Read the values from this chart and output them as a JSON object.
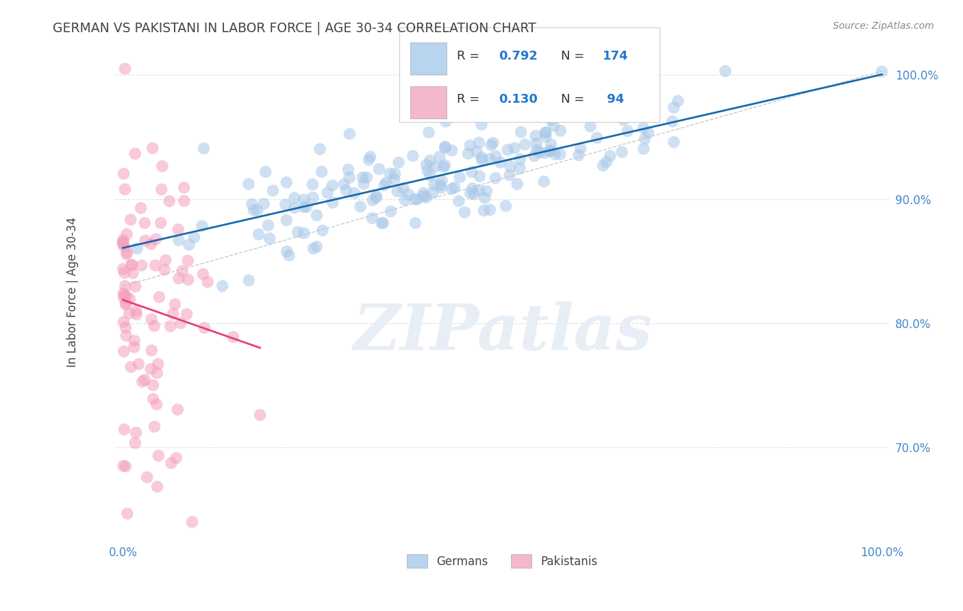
{
  "title": "GERMAN VS PAKISTANI IN LABOR FORCE | AGE 30-34 CORRELATION CHART",
  "source": "Source: ZipAtlas.com",
  "ylabel": "In Labor Force | Age 30-34",
  "xlim": [
    -0.01,
    1.01
  ],
  "ylim": [
    0.625,
    1.025
  ],
  "yticks": [
    0.7,
    0.8,
    0.9,
    1.0
  ],
  "ytick_labels": [
    "70.0%",
    "80.0%",
    "90.0%",
    "100.0%"
  ],
  "xticks": [
    0.0,
    0.5,
    1.0
  ],
  "xtick_labels": [
    "0.0%",
    "",
    "100.0%"
  ],
  "legend_R_blue": "0.792",
  "legend_N_blue": "174",
  "legend_R_pink": "0.130",
  "legend_N_pink": " 94",
  "blue_scatter_color": "#a8c8e8",
  "pink_scatter_color": "#f4a0be",
  "blue_line_color": "#1a6aaa",
  "pink_line_color": "#e8406a",
  "ref_line_color": "#cccccc",
  "watermark_text": "ZIPatlas",
  "watermark_color": "#e8eef5",
  "grid_color": "#e0e0e0",
  "background_color": "#ffffff",
  "tick_color": "#4488cc",
  "title_color": "#444444",
  "source_color": "#888888"
}
